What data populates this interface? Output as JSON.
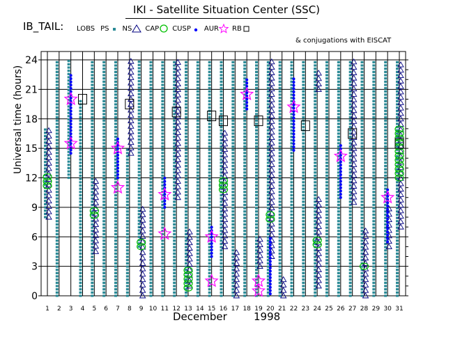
{
  "header": {
    "title": "IKI - Satellite Situation Center (SSC)",
    "panel_label": "IB_TAIL:",
    "conjugations_note": "& conjugations with EISCAT"
  },
  "legend": [
    {
      "label": "LOBS",
      "symbol": "none",
      "color": "#000000"
    },
    {
      "label": "PS",
      "symbol": "small-square",
      "color": "#2a8a96"
    },
    {
      "label": "NS",
      "symbol": "triangle",
      "color": "#000080"
    },
    {
      "label": "CAP",
      "symbol": "circle",
      "color": "#00c000"
    },
    {
      "label": "CUSP",
      "symbol": "dot",
      "color": "#0000ff"
    },
    {
      "label": "AUR",
      "symbol": "star",
      "color": "#ff00ff"
    },
    {
      "label": "RB",
      "symbol": "square",
      "color": "#000000"
    }
  ],
  "chart_data": {
    "type": "scatter",
    "xlabel": "December",
    "x_year": "1998",
    "ylabel": "Universal time (hours)",
    "x_ticks": [
      "1",
      "2",
      "3",
      "4",
      "5",
      "6",
      "7",
      "8",
      "9",
      "10",
      "11",
      "12",
      "13",
      "14",
      "15",
      "16",
      "17",
      "18",
      "19",
      "20",
      "21",
      "22",
      "23",
      "24",
      "25",
      "26",
      "27",
      "28",
      "29",
      "30",
      "31"
    ],
    "y_ticks": [
      "0",
      "3",
      "6",
      "9",
      "12",
      "15",
      "18",
      "21",
      "24"
    ],
    "ylim": [
      0,
      24
    ],
    "grid": true,
    "colors": {
      "PS": "#2a8a96",
      "NS": "#000080",
      "CAP": "#00c000",
      "CUSP": "#0000ff",
      "AUR": "#ff00ff",
      "RB": "#000000",
      "LOBS": "#000000"
    },
    "series": [
      {
        "name": "PS",
        "marker": "small-square",
        "segments": [
          {
            "day": 1,
            "from": 8,
            "to": 17
          },
          {
            "day": 2,
            "from": 0,
            "to": 24
          },
          {
            "day": 3,
            "from": 12,
            "to": 24
          },
          {
            "day": 4,
            "from": 0,
            "to": 20
          },
          {
            "day": 5,
            "from": 0,
            "to": 24
          },
          {
            "day": 6,
            "from": 0,
            "to": 24
          },
          {
            "day": 7,
            "from": 0,
            "to": 24
          },
          {
            "day": 8,
            "from": 0,
            "to": 15
          },
          {
            "day": 9,
            "from": 5,
            "to": 24
          },
          {
            "day": 10,
            "from": 0,
            "to": 24
          },
          {
            "day": 11,
            "from": 0,
            "to": 24
          },
          {
            "day": 12,
            "from": 0,
            "to": 24
          },
          {
            "day": 13,
            "from": 0,
            "to": 24
          },
          {
            "day": 14,
            "from": 0,
            "to": 24
          },
          {
            "day": 15,
            "from": 0,
            "to": 24
          },
          {
            "day": 16,
            "from": 0,
            "to": 24
          },
          {
            "day": 17,
            "from": 0,
            "to": 24
          },
          {
            "day": 18,
            "from": 0,
            "to": 24
          },
          {
            "day": 19,
            "from": 0,
            "to": 24
          },
          {
            "day": 20,
            "from": 0,
            "to": 24
          },
          {
            "day": 21,
            "from": 0,
            "to": 24
          },
          {
            "day": 22,
            "from": 0,
            "to": 24
          },
          {
            "day": 23,
            "from": 0,
            "to": 24
          },
          {
            "day": 24,
            "from": 0,
            "to": 24
          },
          {
            "day": 25,
            "from": 0,
            "to": 24
          },
          {
            "day": 26,
            "from": 0,
            "to": 24
          },
          {
            "day": 27,
            "from": 0,
            "to": 24
          },
          {
            "day": 28,
            "from": 0,
            "to": 24
          },
          {
            "day": 29,
            "from": 0,
            "to": 24
          },
          {
            "day": 30,
            "from": 0,
            "to": 24
          },
          {
            "day": 31,
            "from": 0,
            "to": 24
          }
        ]
      },
      {
        "name": "NS",
        "marker": "triangle",
        "segments": [
          {
            "day": 1,
            "from": 8,
            "to": 17
          },
          {
            "day": 5,
            "from": 4.5,
            "to": 12
          },
          {
            "day": 8,
            "from": 14.5,
            "to": 24
          },
          {
            "day": 9,
            "from": 0,
            "to": 9
          },
          {
            "day": 12,
            "from": 10,
            "to": 24
          },
          {
            "day": 13,
            "from": 1,
            "to": 7
          },
          {
            "day": 16,
            "from": 5,
            "to": 17
          },
          {
            "day": 17,
            "from": 0,
            "to": 4.5
          },
          {
            "day": 19,
            "from": 3,
            "to": 6
          },
          {
            "day": 20,
            "from": 4,
            "to": 24
          },
          {
            "day": 21,
            "from": 0,
            "to": 2
          },
          {
            "day": 24,
            "from": 1,
            "to": 10
          },
          {
            "day": 24,
            "from": 21,
            "to": 23
          },
          {
            "day": 27,
            "from": 9.5,
            "to": 24
          },
          {
            "day": 28,
            "from": 0,
            "to": 7
          },
          {
            "day": 30,
            "from": 5,
            "to": 9
          },
          {
            "day": 31,
            "from": 7,
            "to": 24
          }
        ]
      },
      {
        "name": "CAP",
        "marker": "circle",
        "segments": [
          {
            "day": 1,
            "from": 11.2,
            "to": 12.2
          },
          {
            "day": 5,
            "from": 8.2,
            "to": 9
          },
          {
            "day": 9,
            "from": 5,
            "to": 5.8
          },
          {
            "day": 13,
            "from": 0.8,
            "to": 2.7
          },
          {
            "day": 16,
            "from": 10.8,
            "to": 12
          },
          {
            "day": 20,
            "from": 7.8,
            "to": 8.6
          },
          {
            "day": 24,
            "from": 5.2,
            "to": 5.8
          },
          {
            "day": 28,
            "from": 3,
            "to": 3.3
          },
          {
            "day": 31,
            "from": 12,
            "to": 17
          }
        ]
      },
      {
        "name": "CUSP",
        "marker": "dot",
        "segments": [
          {
            "day": 3,
            "from": 14.5,
            "to": 22.5
          },
          {
            "day": 7,
            "from": 12,
            "to": 16
          },
          {
            "day": 11,
            "from": 9,
            "to": 12
          },
          {
            "day": 15,
            "from": 4,
            "to": 7
          },
          {
            "day": 18,
            "from": 19,
            "to": 22
          },
          {
            "day": 20,
            "from": 0.2,
            "to": 6
          },
          {
            "day": 22,
            "from": 14.8,
            "to": 22.2
          },
          {
            "day": 26,
            "from": 10,
            "to": 15.5
          },
          {
            "day": 30,
            "from": 5.5,
            "to": 11
          }
        ]
      },
      {
        "name": "AUR",
        "marker": "star",
        "points": [
          {
            "day": 3,
            "ut": 15.5
          },
          {
            "day": 3,
            "ut": 20
          },
          {
            "day": 7,
            "ut": 11
          },
          {
            "day": 7,
            "ut": 15
          },
          {
            "day": 11,
            "ut": 6.3
          },
          {
            "day": 11,
            "ut": 10.3
          },
          {
            "day": 15,
            "ut": 1.5
          },
          {
            "day": 15,
            "ut": 6
          },
          {
            "day": 18,
            "ut": 20.5
          },
          {
            "day": 19,
            "ut": 0.5
          },
          {
            "day": 19,
            "ut": 1.5
          },
          {
            "day": 22,
            "ut": 19.2
          },
          {
            "day": 26,
            "ut": 14.2
          },
          {
            "day": 30,
            "ut": 10
          }
        ]
      },
      {
        "name": "RB",
        "marker": "square",
        "points": [
          {
            "day": 4,
            "ut": 20
          },
          {
            "day": 8,
            "ut": 19.5
          },
          {
            "day": 12,
            "ut": 18.7
          },
          {
            "day": 15,
            "ut": 18.3
          },
          {
            "day": 16,
            "ut": 17.8
          },
          {
            "day": 19,
            "ut": 17.8
          },
          {
            "day": 23,
            "ut": 17.3
          },
          {
            "day": 27,
            "ut": 16.5
          },
          {
            "day": 31,
            "ut": 15.5
          }
        ]
      },
      {
        "name": "LOBS",
        "marker": "none",
        "points": []
      }
    ]
  }
}
